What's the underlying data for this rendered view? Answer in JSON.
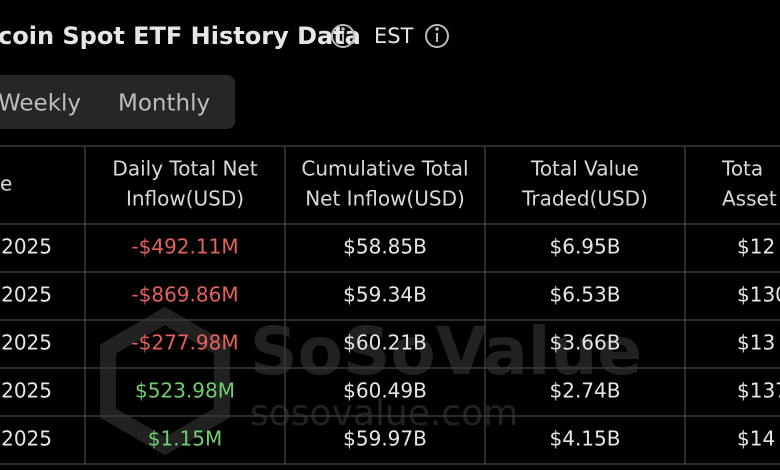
{
  "header": {
    "title": "coin Spot ETF History Data",
    "timezone": "EST"
  },
  "tabs": [
    "Weekly",
    "Monthly"
  ],
  "table": {
    "columns": [
      [
        "e"
      ],
      [
        "Daily Total Net",
        "Inflow(USD)"
      ],
      [
        "Cumulative Total",
        "Net Inflow(USD)"
      ],
      [
        "Total Value",
        "Traded(USD)"
      ],
      [
        "Tota",
        "Asset"
      ]
    ],
    "rows": [
      [
        "2025",
        "-$492.11M",
        "$58.85B",
        "$6.95B",
        "$12"
      ],
      [
        "2025",
        "-$869.86M",
        "$59.34B",
        "$6.53B",
        "$130"
      ],
      [
        "2025",
        "-$277.98M",
        "$60.21B",
        "$3.66B",
        "$13"
      ],
      [
        "2025",
        "$523.98M",
        "$60.49B",
        "$2.74B",
        "$137"
      ],
      [
        "2025",
        "$1.15M",
        "$59.97B",
        "$4.15B",
        "$14"
      ]
    ]
  },
  "watermark": {
    "brand": "SoSoValue",
    "url": "sosovalue.com"
  }
}
